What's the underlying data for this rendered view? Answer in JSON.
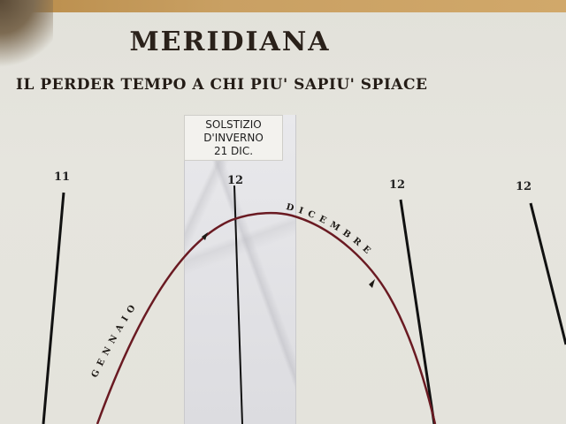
{
  "sign": {
    "title": "MERIDIANA",
    "motto": "IL PERDER TEMPO A CHI PIU' SAPIU' SPIACE"
  },
  "solstice_label": {
    "line1": "SOLSTIZIO",
    "line2": "D'INVERNO",
    "line3": "21 DIC."
  },
  "hour_marks": {
    "left": "11",
    "center": "12",
    "right_a": "12",
    "right_b": "12"
  },
  "curve_labels": {
    "left_month": "GENNAIO",
    "right_month": "DICEMBRE"
  },
  "colors": {
    "plaster": "#e4e3dc",
    "ink": "#1e1a16",
    "curve": "#6a1a22",
    "marble": "#e3e3e6",
    "wood_band": "#c9a063"
  }
}
